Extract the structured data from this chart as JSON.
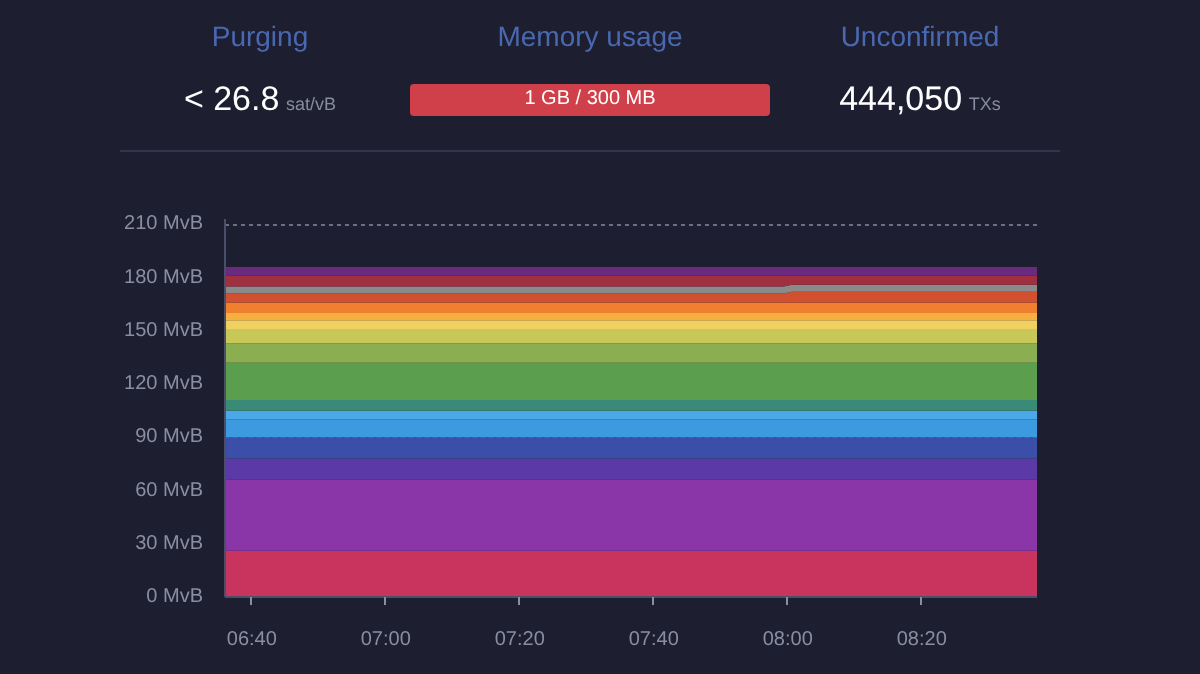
{
  "chart_data": [
    {
      "type": "other",
      "annotations": [
        "Purging",
        "< 26.8",
        "sat/vB",
        "Memory usage",
        "1 GB / 300 MB",
        "Unconfirmed",
        "444,050",
        "TXs"
      ]
    },
    {
      "type": "area",
      "stacked": true,
      "x": [
        6.6,
        7.99,
        8.01,
        8.62
      ],
      "series": [
        {
          "color": "#c8345e",
          "values": [
            26,
            26,
            26,
            26
          ]
        },
        {
          "color": "#8a35a8",
          "values": [
            40,
            40,
            40,
            40
          ]
        },
        {
          "color": "#5b3aa8",
          "values": [
            12,
            12,
            12,
            12
          ]
        },
        {
          "color": "#3b4ea8",
          "values": [
            12,
            12,
            12,
            12
          ]
        },
        {
          "color": "#3c9ae0",
          "values": [
            10,
            10,
            10,
            10
          ]
        },
        {
          "color": "#4aa8e8",
          "values": [
            5,
            5,
            5,
            5
          ]
        },
        {
          "color": "#3a8a78",
          "values": [
            6,
            6,
            6,
            6
          ]
        },
        {
          "color": "#5a9e4e",
          "values": [
            21,
            21,
            21,
            21
          ]
        },
        {
          "color": "#8aae50",
          "values": [
            11,
            11,
            11,
            11
          ]
        },
        {
          "color": "#c8c858",
          "values": [
            8,
            8,
            8,
            8
          ]
        },
        {
          "color": "#f0d060",
          "values": [
            5,
            5,
            5,
            5
          ]
        },
        {
          "color": "#f5b040",
          "values": [
            4,
            4,
            4,
            4
          ]
        },
        {
          "color": "#f08030",
          "values": [
            6,
            6,
            6,
            6
          ]
        },
        {
          "color": "#d05030",
          "values": [
            5,
            5,
            6,
            6
          ]
        },
        {
          "color": "#8a8a8a",
          "values": [
            4,
            4,
            4,
            4
          ]
        },
        {
          "color": "#a03040",
          "values": [
            6,
            6,
            5,
            5
          ]
        },
        {
          "color": "#6a2a80",
          "values": [
            5,
            5,
            5,
            5
          ]
        }
      ],
      "xlim": [
        6.6,
        8.62
      ],
      "ylim": [
        0,
        213
      ],
      "xticks": [
        {
          "value": 6.6667,
          "label": "06:40"
        },
        {
          "value": 7,
          "label": "07:00"
        },
        {
          "value": 7.3333,
          "label": "07:20"
        },
        {
          "value": 7.6667,
          "label": "07:40"
        },
        {
          "value": 8,
          "label": "08:00"
        },
        {
          "value": 8.3333,
          "label": "08:20"
        }
      ],
      "yticks": [
        {
          "value": 0,
          "label": "0 MvB"
        },
        {
          "value": 30,
          "label": "30 MvB"
        },
        {
          "value": 60,
          "label": "60 MvB"
        },
        {
          "value": 90,
          "label": "90 MvB"
        },
        {
          "value": 120,
          "label": "120 MvB"
        },
        {
          "value": 150,
          "label": "150 MvB"
        },
        {
          "value": 180,
          "label": "180 MvB"
        },
        {
          "value": 210,
          "label": "210 MvB"
        }
      ],
      "grid": "y"
    }
  ]
}
